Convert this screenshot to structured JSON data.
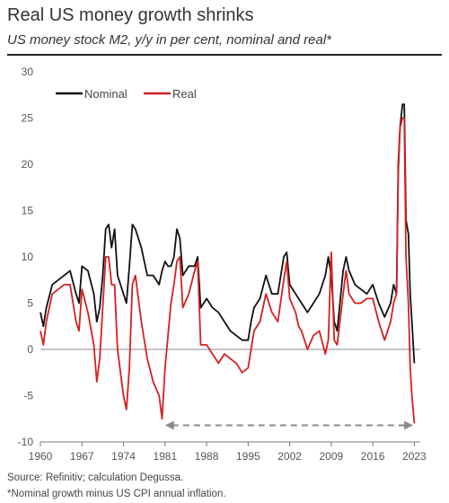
{
  "header": {
    "title": "Real US money growth shrinks",
    "subtitle": "US money stock M2, y/y in per cent, nominal and real*"
  },
  "footer": {
    "source": "Source: Refinitiv; calculation Degussa.",
    "footnote": "*Nominal growth minus US CPI annual inflation."
  },
  "colors": {
    "nominal": "#111111",
    "real": "#d42020",
    "zero_line": "#888888",
    "arrow": "#8a8a8a"
  },
  "chart_data": {
    "type": "line",
    "xlabel": "",
    "ylabel": "",
    "xlim": [
      1960,
      2024
    ],
    "ylim": [
      -10,
      30
    ],
    "x_ticks": [
      "1960",
      "1967",
      "1974",
      "1981",
      "1988",
      "1995",
      "2002",
      "2009",
      "2016",
      "2023"
    ],
    "y_ticks": [
      "30",
      "25",
      "20",
      "15",
      "10",
      "5",
      "0",
      "-5",
      "-10"
    ],
    "legend": {
      "placement": "top-left"
    },
    "grid": false,
    "annotation": {
      "type": "double-arrow-dashed",
      "from": [
        1981,
        -8.2
      ],
      "to": [
        2022.8,
        -8.2
      ]
    },
    "series": [
      {
        "name": "Nominal",
        "x": [
          1960.0,
          1960.5,
          1961.0,
          1962.0,
          1963.0,
          1964.0,
          1965.0,
          1966.0,
          1966.5,
          1967.0,
          1968.0,
          1969.0,
          1969.5,
          1970.0,
          1970.5,
          1971.0,
          1971.5,
          1972.0,
          1972.5,
          1973.0,
          1974.0,
          1974.5,
          1975.0,
          1975.5,
          1976.0,
          1977.0,
          1978.0,
          1979.0,
          1980.0,
          1980.5,
          1981.0,
          1981.5,
          1982.0,
          1982.5,
          1983.0,
          1983.5,
          1984.0,
          1985.0,
          1986.0,
          1986.5,
          1987.0,
          1988.0,
          1989.0,
          1990.0,
          1991.0,
          1992.0,
          1993.0,
          1994.0,
          1995.0,
          1995.5,
          1996.0,
          1997.0,
          1998.0,
          1999.0,
          2000.0,
          2001.0,
          2001.5,
          2002.0,
          2003.0,
          2003.5,
          2004.0,
          2005.0,
          2006.0,
          2007.0,
          2008.0,
          2008.5,
          2009.0,
          2009.5,
          2010.0,
          2011.0,
          2011.5,
          2012.0,
          2013.0,
          2014.0,
          2015.0,
          2016.0,
          2017.0,
          2018.0,
          2019.0,
          2019.5,
          2020.0,
          2020.3,
          2020.6,
          2021.0,
          2021.3,
          2021.6,
          2022.0,
          2022.3,
          2022.6,
          2023.0
        ],
        "values": [
          4.0,
          2.5,
          4.5,
          7.0,
          7.5,
          8.0,
          8.5,
          6.0,
          5.0,
          9.0,
          8.5,
          6.0,
          3.0,
          4.5,
          8.0,
          13.0,
          13.5,
          11.0,
          13.0,
          8.0,
          6.0,
          5.0,
          9.0,
          13.5,
          13.0,
          11.0,
          8.0,
          8.0,
          7.0,
          8.5,
          9.5,
          9.0,
          9.0,
          10.0,
          13.0,
          12.0,
          8.0,
          9.0,
          9.0,
          10.0,
          4.5,
          5.5,
          4.5,
          4.0,
          3.0,
          2.0,
          1.5,
          1.0,
          1.0,
          3.0,
          4.5,
          5.5,
          8.0,
          6.0,
          6.0,
          10.0,
          10.5,
          7.0,
          6.0,
          5.5,
          5.0,
          4.0,
          5.0,
          6.0,
          8.0,
          10.0,
          8.0,
          3.0,
          2.0,
          8.5,
          10.0,
          8.5,
          7.0,
          6.5,
          6.0,
          7.0,
          5.0,
          3.5,
          5.0,
          7.0,
          6.0,
          20.0,
          24.0,
          26.5,
          26.5,
          14.0,
          12.5,
          6.0,
          3.0,
          -1.5
        ]
      },
      {
        "name": "Real",
        "x": [
          1960.0,
          1960.5,
          1961.0,
          1962.0,
          1963.0,
          1964.0,
          1965.0,
          1966.0,
          1966.5,
          1967.0,
          1968.0,
          1969.0,
          1969.5,
          1970.0,
          1970.5,
          1971.0,
          1971.5,
          1972.0,
          1972.5,
          1973.0,
          1974.0,
          1974.5,
          1975.0,
          1975.5,
          1976.0,
          1977.0,
          1978.0,
          1979.0,
          1980.0,
          1980.5,
          1981.0,
          1981.5,
          1982.0,
          1982.5,
          1983.0,
          1983.5,
          1984.0,
          1985.0,
          1986.0,
          1986.5,
          1987.0,
          1988.0,
          1989.0,
          1990.0,
          1991.0,
          1992.0,
          1993.0,
          1994.0,
          1995.0,
          1995.5,
          1996.0,
          1997.0,
          1998.0,
          1999.0,
          2000.0,
          2001.0,
          2001.5,
          2002.0,
          2003.0,
          2003.5,
          2004.0,
          2005.0,
          2006.0,
          2007.0,
          2008.0,
          2008.5,
          2009.0,
          2009.5,
          2010.0,
          2011.0,
          2011.5,
          2012.0,
          2013.0,
          2014.0,
          2015.0,
          2016.0,
          2017.0,
          2018.0,
          2019.0,
          2019.5,
          2020.0,
          2020.3,
          2020.6,
          2021.0,
          2021.3,
          2021.6,
          2022.0,
          2022.3,
          2022.6,
          2023.0
        ],
        "values": [
          2.0,
          0.5,
          3.0,
          6.0,
          6.5,
          7.0,
          7.0,
          3.0,
          2.0,
          6.5,
          4.0,
          0.5,
          -3.5,
          -1.0,
          4.5,
          10.0,
          10.0,
          7.0,
          7.0,
          0.0,
          -5.0,
          -6.5,
          -2.0,
          7.0,
          8.0,
          3.0,
          -1.0,
          -3.5,
          -5.0,
          -7.5,
          -2.0,
          1.5,
          5.0,
          7.0,
          9.5,
          10.0,
          4.5,
          6.0,
          8.5,
          9.5,
          0.5,
          0.5,
          -0.5,
          -1.5,
          -0.5,
          -1.0,
          -1.5,
          -2.5,
          -2.0,
          0.0,
          2.0,
          3.0,
          6.0,
          4.0,
          3.0,
          7.5,
          9.5,
          5.5,
          4.0,
          2.5,
          2.0,
          0.0,
          1.5,
          2.0,
          -0.5,
          1.0,
          10.5,
          1.0,
          0.5,
          6.0,
          8.5,
          6.0,
          5.0,
          5.0,
          5.5,
          5.5,
          3.0,
          1.0,
          3.0,
          5.0,
          6.0,
          19.0,
          24.0,
          25.0,
          25.0,
          10.0,
          5.0,
          -2.0,
          -5.0,
          -8.0
        ]
      }
    ]
  }
}
